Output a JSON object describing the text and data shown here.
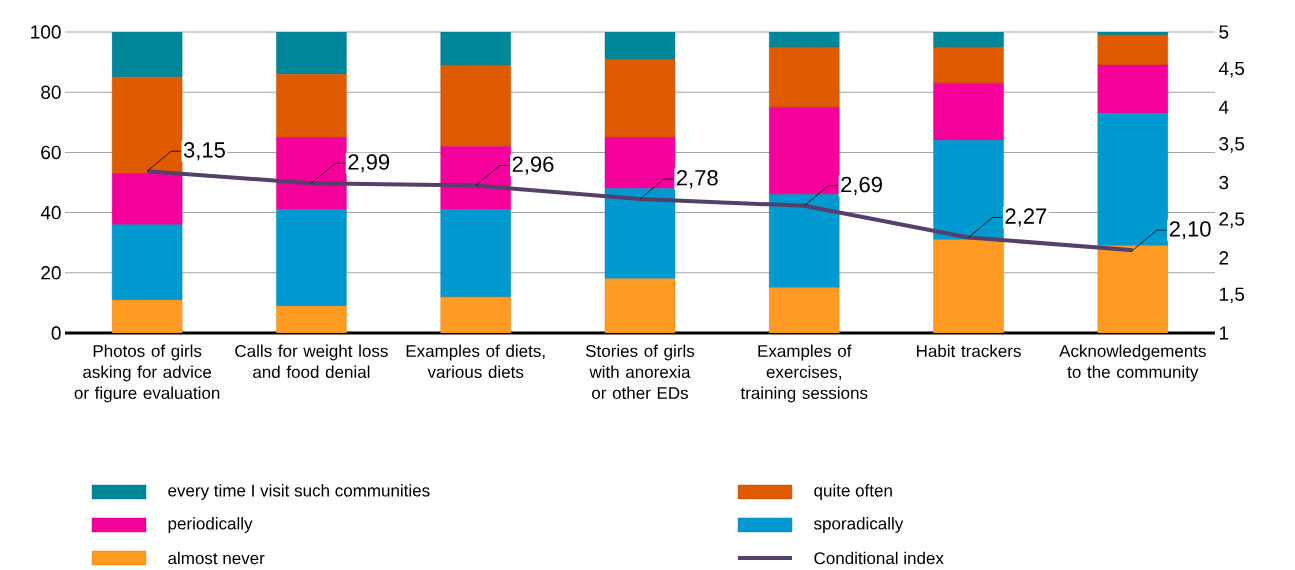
{
  "chart_data": {
    "type": "bar",
    "stacked": true,
    "categories": [
      "Photos of girls asking for advice or figure evaluation",
      "Calls for weight loss and food denial",
      "Examples of diets, various diets",
      "Stories of girls with anorexia or other EDs",
      "Examples of exercises, training sessions",
      "Habit trackers",
      "Acknowledgements to the community"
    ],
    "series": [
      {
        "name": "almost never",
        "color": "#ff9a22",
        "values": [
          11,
          9,
          12,
          18,
          15,
          31,
          29
        ]
      },
      {
        "name": "sporadically",
        "color": "#0099d0",
        "values": [
          25,
          32,
          29,
          30,
          31,
          33,
          44
        ]
      },
      {
        "name": "periodically",
        "color": "#f5009a",
        "values": [
          17,
          24,
          21,
          17,
          29,
          19,
          16
        ]
      },
      {
        "name": "quite often",
        "color": "#e05a00",
        "values": [
          32,
          21,
          27,
          26,
          20,
          12,
          10
        ]
      },
      {
        "name": "every time I visit such communities",
        "color": "#00889a",
        "values": [
          15,
          14,
          11,
          9,
          5,
          5,
          1
        ]
      },
      {
        "name": "Conditional index",
        "type": "line",
        "axis": "y2",
        "color": "#54406a",
        "values": [
          3.15,
          2.99,
          2.96,
          2.78,
          2.69,
          2.27,
          2.1
        ],
        "value_labels": [
          "3,15",
          "2,99",
          "2,96",
          "2,78",
          "2,69",
          "2,27",
          "2,10"
        ]
      }
    ],
    "ylim": [
      0,
      100
    ],
    "yticks": [
      0,
      20,
      40,
      60,
      80,
      100
    ],
    "y2lim": [
      1,
      5
    ],
    "y2ticks": [
      1,
      {
        "value": 1.5,
        "label": "1,5"
      },
      2,
      {
        "value": 2.5,
        "label": "2,5"
      },
      3,
      {
        "value": 3.5,
        "label": "3,5"
      },
      4,
      {
        "value": 4.5,
        "label": "4,5"
      },
      5
    ],
    "grid": "y",
    "legend": "bottom"
  }
}
